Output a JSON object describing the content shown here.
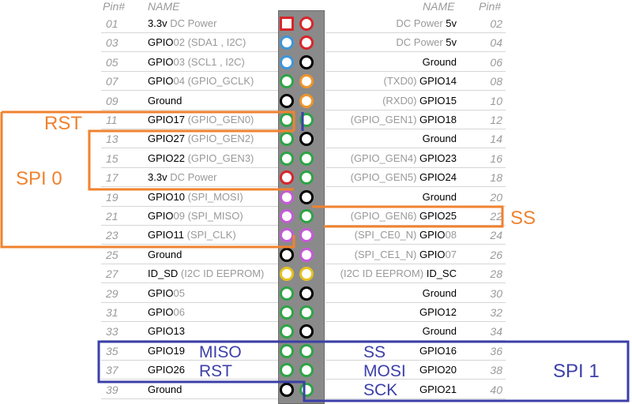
{
  "header": {
    "pin_left": "Pin#",
    "name_left": "NAME",
    "name_right": "NAME",
    "pin_right": "Pin#"
  },
  "colors": {
    "red": "#d7262b",
    "blue": "#3f95d8",
    "green": "#2ea446",
    "black": "#000000",
    "orange": "#f0942a",
    "purple": "#c45bd6",
    "yellow": "#e5c21d",
    "overlay_orange": "#f0822e",
    "overlay_blue": "#3b3fa8"
  },
  "rows": [
    {
      "left_pin": "01",
      "left_name": "3.3v",
      "left_sub": " DC Power",
      "left_color": "red",
      "left_square": true,
      "right_pin": "02",
      "right_sub": "DC Power ",
      "right_name": "5v",
      "right_color": "red"
    },
    {
      "left_pin": "03",
      "left_name": "GPIO",
      "left_sub": "02 (SDA1 , I2C)",
      "left_color": "blue",
      "right_pin": "04",
      "right_sub": "DC Power ",
      "right_name": "5v",
      "right_color": "red"
    },
    {
      "left_pin": "05",
      "left_name": "GPIO",
      "left_sub": "03 (SCL1 , I2C)",
      "left_color": "blue",
      "right_pin": "06",
      "right_sub": "",
      "right_name": "Ground",
      "right_color": "black"
    },
    {
      "left_pin": "07",
      "left_name": "GPIO",
      "left_sub": "04 (GPIO_GCLK)",
      "left_color": "green",
      "right_pin": "08",
      "right_sub": "(TXD0) ",
      "right_name": "GPIO14",
      "right_color": "orange"
    },
    {
      "left_pin": "09",
      "left_name": "Ground",
      "left_sub": "",
      "left_color": "black",
      "right_pin": "10",
      "right_sub": "(RXD0) ",
      "right_name": "GPIO15",
      "right_color": "orange"
    },
    {
      "left_pin": "11",
      "left_name": "GPIO17",
      "left_sub": " (GPIO_GEN0)",
      "left_color": "green",
      "right_pin": "12",
      "right_sub": "(GPIO_GEN1) ",
      "right_name": "GPIO18",
      "right_color": "green"
    },
    {
      "left_pin": "13",
      "left_name": "GPIO27",
      "left_sub": " (GPIO_GEN2)",
      "left_color": "green",
      "right_pin": "14",
      "right_sub": "",
      "right_name": "Ground",
      "right_color": "black"
    },
    {
      "left_pin": "15",
      "left_name": "GPIO22",
      "left_sub": " (GPIO_GEN3)",
      "left_color": "green",
      "right_pin": "16",
      "right_sub": "(GPIO_GEN4) ",
      "right_name": "GPIO23",
      "right_color": "green"
    },
    {
      "left_pin": "17",
      "left_name": "3.3v",
      "left_sub": " DC Power",
      "left_color": "red",
      "right_pin": "18",
      "right_sub": "(GPIO_GEN5) ",
      "right_name": "GPIO24",
      "right_color": "green"
    },
    {
      "left_pin": "19",
      "left_name": "GPIO10",
      "left_sub": " (SPI_MOSI)",
      "left_color": "purple",
      "right_pin": "20",
      "right_sub": "",
      "right_name": "Ground",
      "right_color": "black"
    },
    {
      "left_pin": "21",
      "left_name": "GPIO",
      "left_sub": "09 (SPI_MISO)",
      "left_color": "purple",
      "right_pin": "22",
      "right_sub": "(GPIO_GEN6) ",
      "right_name": "GPIO25",
      "right_color": "green"
    },
    {
      "left_pin": "23",
      "left_name": "GPIO11",
      "left_sub": " (SPI_CLK)",
      "left_color": "purple",
      "right_pin": "24",
      "right_sub": "(SPI_CE0_N) ",
      "right_name": "GPIO",
      "right_name_sub": "08",
      "right_color": "purple"
    },
    {
      "left_pin": "25",
      "left_name": "Ground",
      "left_sub": "",
      "left_color": "black",
      "right_pin": "26",
      "right_sub": "(SPI_CE1_N) ",
      "right_name": "GPIO",
      "right_name_sub": "07",
      "right_color": "purple"
    },
    {
      "left_pin": "27",
      "left_name": "ID_SD",
      "left_sub": " (I2C ID EEPROM)",
      "left_color": "yellow",
      "right_pin": "28",
      "right_sub": "(I2C ID EEPROM) ",
      "right_name": "ID_SC",
      "right_color": "yellow"
    },
    {
      "left_pin": "29",
      "left_name": "GPIO",
      "left_sub": "05",
      "left_color": "green",
      "right_pin": "30",
      "right_sub": "",
      "right_name": "Ground",
      "right_color": "black"
    },
    {
      "left_pin": "31",
      "left_name": "GPIO",
      "left_sub": "06",
      "left_color": "green",
      "right_pin": "32",
      "right_sub": "",
      "right_name": "GPIO12",
      "right_color": "green"
    },
    {
      "left_pin": "33",
      "left_name": "GPIO13",
      "left_sub": "",
      "left_color": "green",
      "right_pin": "34",
      "right_sub": "",
      "right_name": "Ground",
      "right_color": "black"
    },
    {
      "left_pin": "35",
      "left_name": "GPIO19",
      "left_sub": "",
      "left_color": "green",
      "right_pin": "36",
      "right_sub": "",
      "right_name": "GPIO16",
      "right_color": "green"
    },
    {
      "left_pin": "37",
      "left_name": "GPIO26",
      "left_sub": "",
      "left_color": "green",
      "right_pin": "38",
      "right_sub": "",
      "right_name": "GPIO20",
      "right_color": "green"
    },
    {
      "left_pin": "39",
      "left_name": "Ground",
      "left_sub": "",
      "left_color": "black",
      "right_pin": "40",
      "right_sub": "",
      "right_name": "GPIO21",
      "right_color": "green"
    }
  ],
  "annotations": {
    "rst_spi0": "RST",
    "spi0": "SPI 0",
    "ss_spi0": "SS",
    "miso": "MISO",
    "rst_spi1": "RST",
    "ss_spi1": "SS",
    "mosi": "MOSI",
    "sck": "SCK",
    "spi1": "SPI 1"
  }
}
